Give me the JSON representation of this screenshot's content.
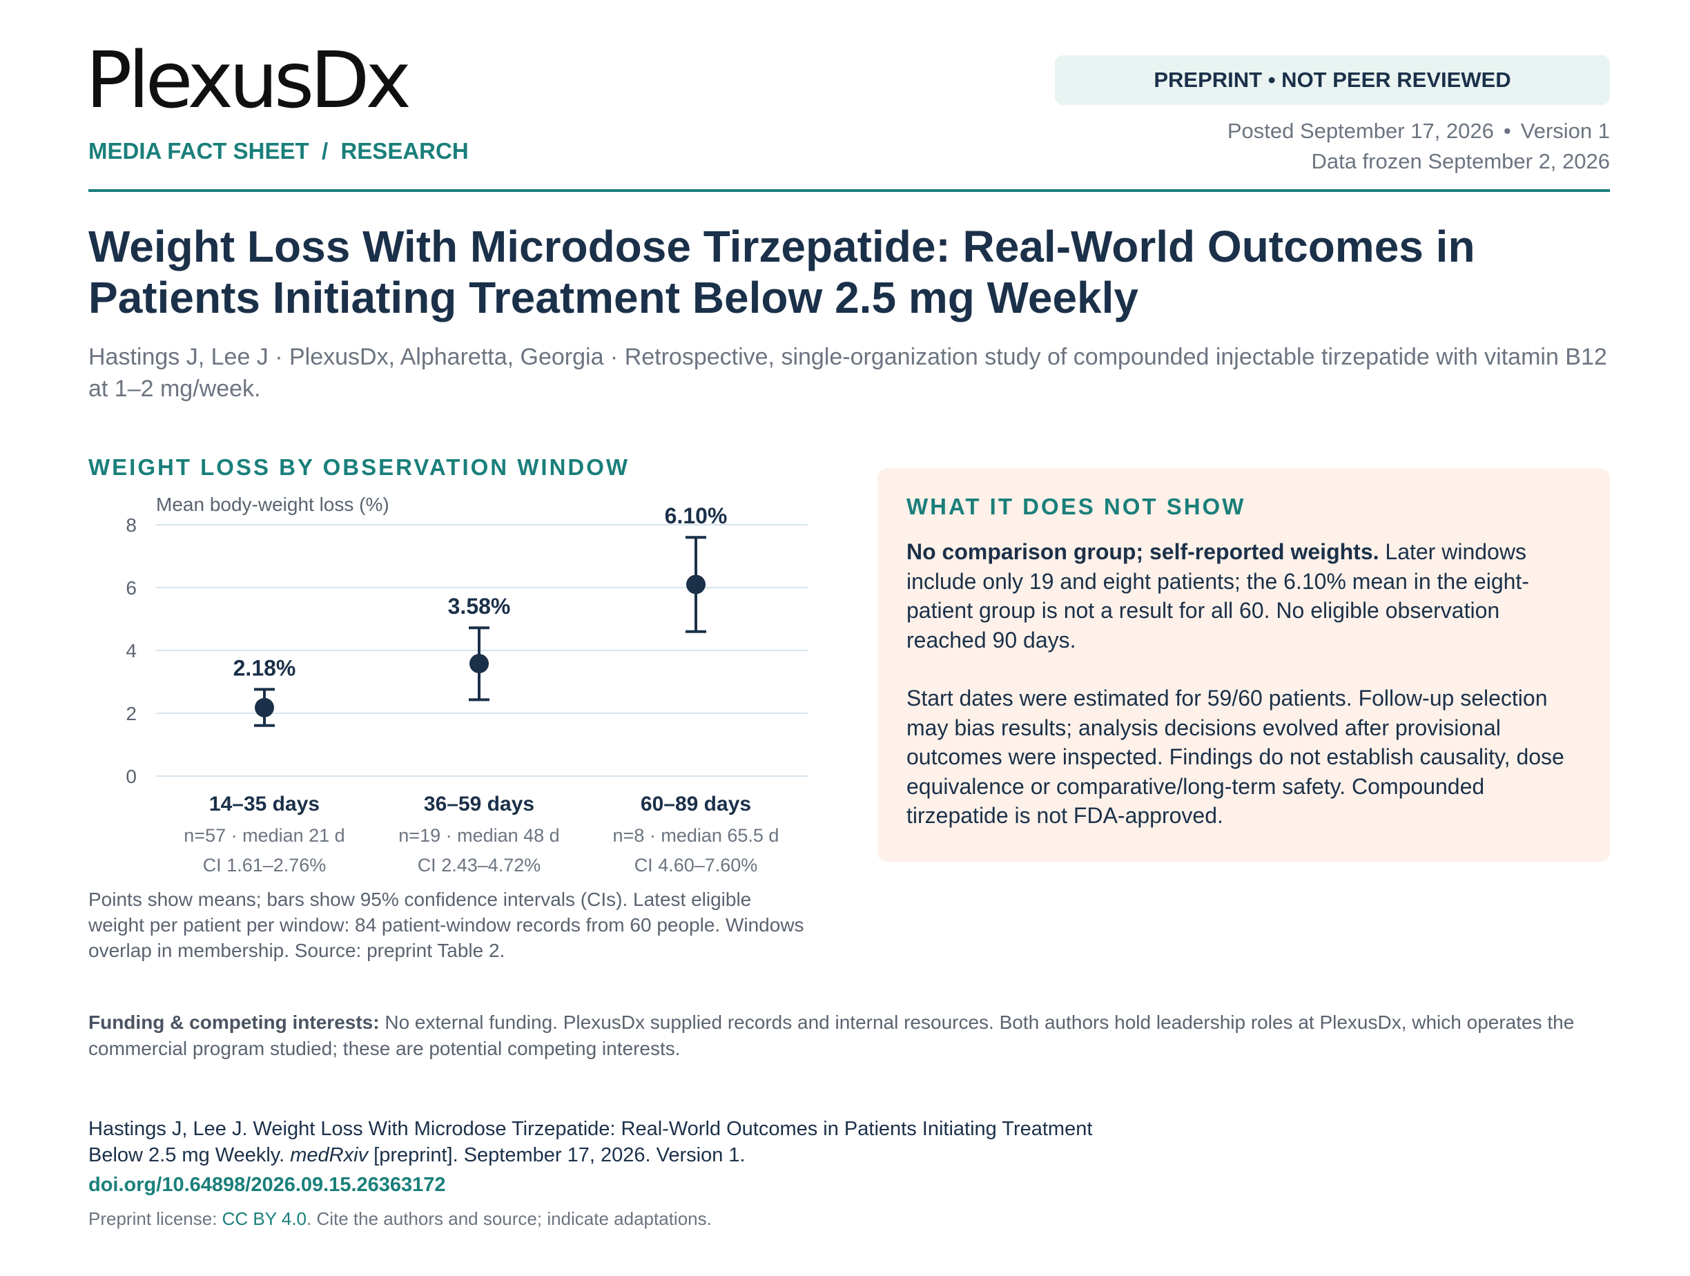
{
  "header": {
    "logo_text": "PlexusDx",
    "section_tag": "MEDIA FACT SHEET  /  RESEARCH",
    "badge": "PREPRINT • NOT PEER REVIEWED",
    "posted": "Posted September 17, 2026",
    "separator": "•",
    "version": "Version 1",
    "data_frozen": "Data frozen September 2, 2026"
  },
  "article": {
    "title": "Weight Loss With Microdose Tirzepatide: Real-World Outcomes in Patients Initiating Treatment Below 2.5 mg Weekly",
    "byline": "Hastings J, Lee J · PlexusDx, Alpharetta, Georgia · Retrospective, single-organization study of compounded injectable tirzepatide with vitamin B12 at 1–2 mg/week."
  },
  "chart_section": {
    "heading": "WEIGHT LOSS BY OBSERVATION WINDOW",
    "notes": "Points show means; bars show 95% confidence intervals (CIs). Latest eligible weight per patient per window: 84 patient-window records from 60 people. Windows overlap in membership. Source: preprint Table 2."
  },
  "chart_data": {
    "type": "scatter",
    "ylabel": "Mean body-weight loss (%)",
    "ylim": [
      0,
      8
    ],
    "yticks": [
      "0",
      "2",
      "4",
      "6",
      "8"
    ],
    "grid": true,
    "categories": [
      "14–35 days",
      "36–59 days",
      "60–89 days"
    ],
    "series": [
      {
        "values": [
          2.18,
          3.58,
          6.1
        ],
        "ci_low": [
          1.61,
          2.43,
          4.6
        ],
        "ci_high": [
          2.76,
          4.72,
          7.6
        ]
      }
    ],
    "value_labels": [
      "2.18%",
      "3.58%",
      "6.10%"
    ],
    "sublabels": [
      "n=57 · median 21 d",
      "n=19 · median 48 d",
      "n=8 · median 65.5 d"
    ],
    "ci_labels": [
      "CI 1.61–2.76%",
      "CI 2.43–4.72%",
      "CI 4.60–7.60%"
    ]
  },
  "callout": {
    "heading": "WHAT IT DOES NOT SHOW",
    "p1_bold": "No comparison group; self-reported weights.",
    "p1_rest": " Later windows include only 19 and eight patients; the 6.10% mean in the eight-patient group is not a result for all 60. No eligible observation reached 90 days.",
    "p2": "Start dates were estimated for 59/60 patients. Follow-up selection may bias results; analysis decisions evolved after provisional outcomes were inspected. Findings do not establish causality, dose equivalence or comparative/long-term safety. Compounded tirzepatide is not FDA-approved."
  },
  "funding": {
    "label": "Funding & competing interests:",
    "text": " No external funding. PlexusDx supplied records and internal resources. Both authors hold leadership roles at PlexusDx, which operates the commercial program studied; these are potential competing interests."
  },
  "citation": {
    "text": "Hastings J, Lee J. Weight Loss With Microdose Tirzepatide: Real-World Outcomes in Patients Initiating Treatment Below 2.5 mg Weekly. ",
    "journal": "medRxiv",
    "rest": " [preprint]. September 17, 2026. Version 1.",
    "doi": "doi.org/10.64898/2026.09.15.26363172",
    "license_prefix": "Preprint license: ",
    "license_link": "CC BY 4.0",
    "license_suffix": ". Cite the authors and source; indicate adaptations."
  },
  "colors": {
    "accent": "#1a7f7a",
    "navy": "#1b3049",
    "callout_bg": "#fdf1e9",
    "badge_bg": "#e9f4f2",
    "grid": "#d5e4ec"
  }
}
